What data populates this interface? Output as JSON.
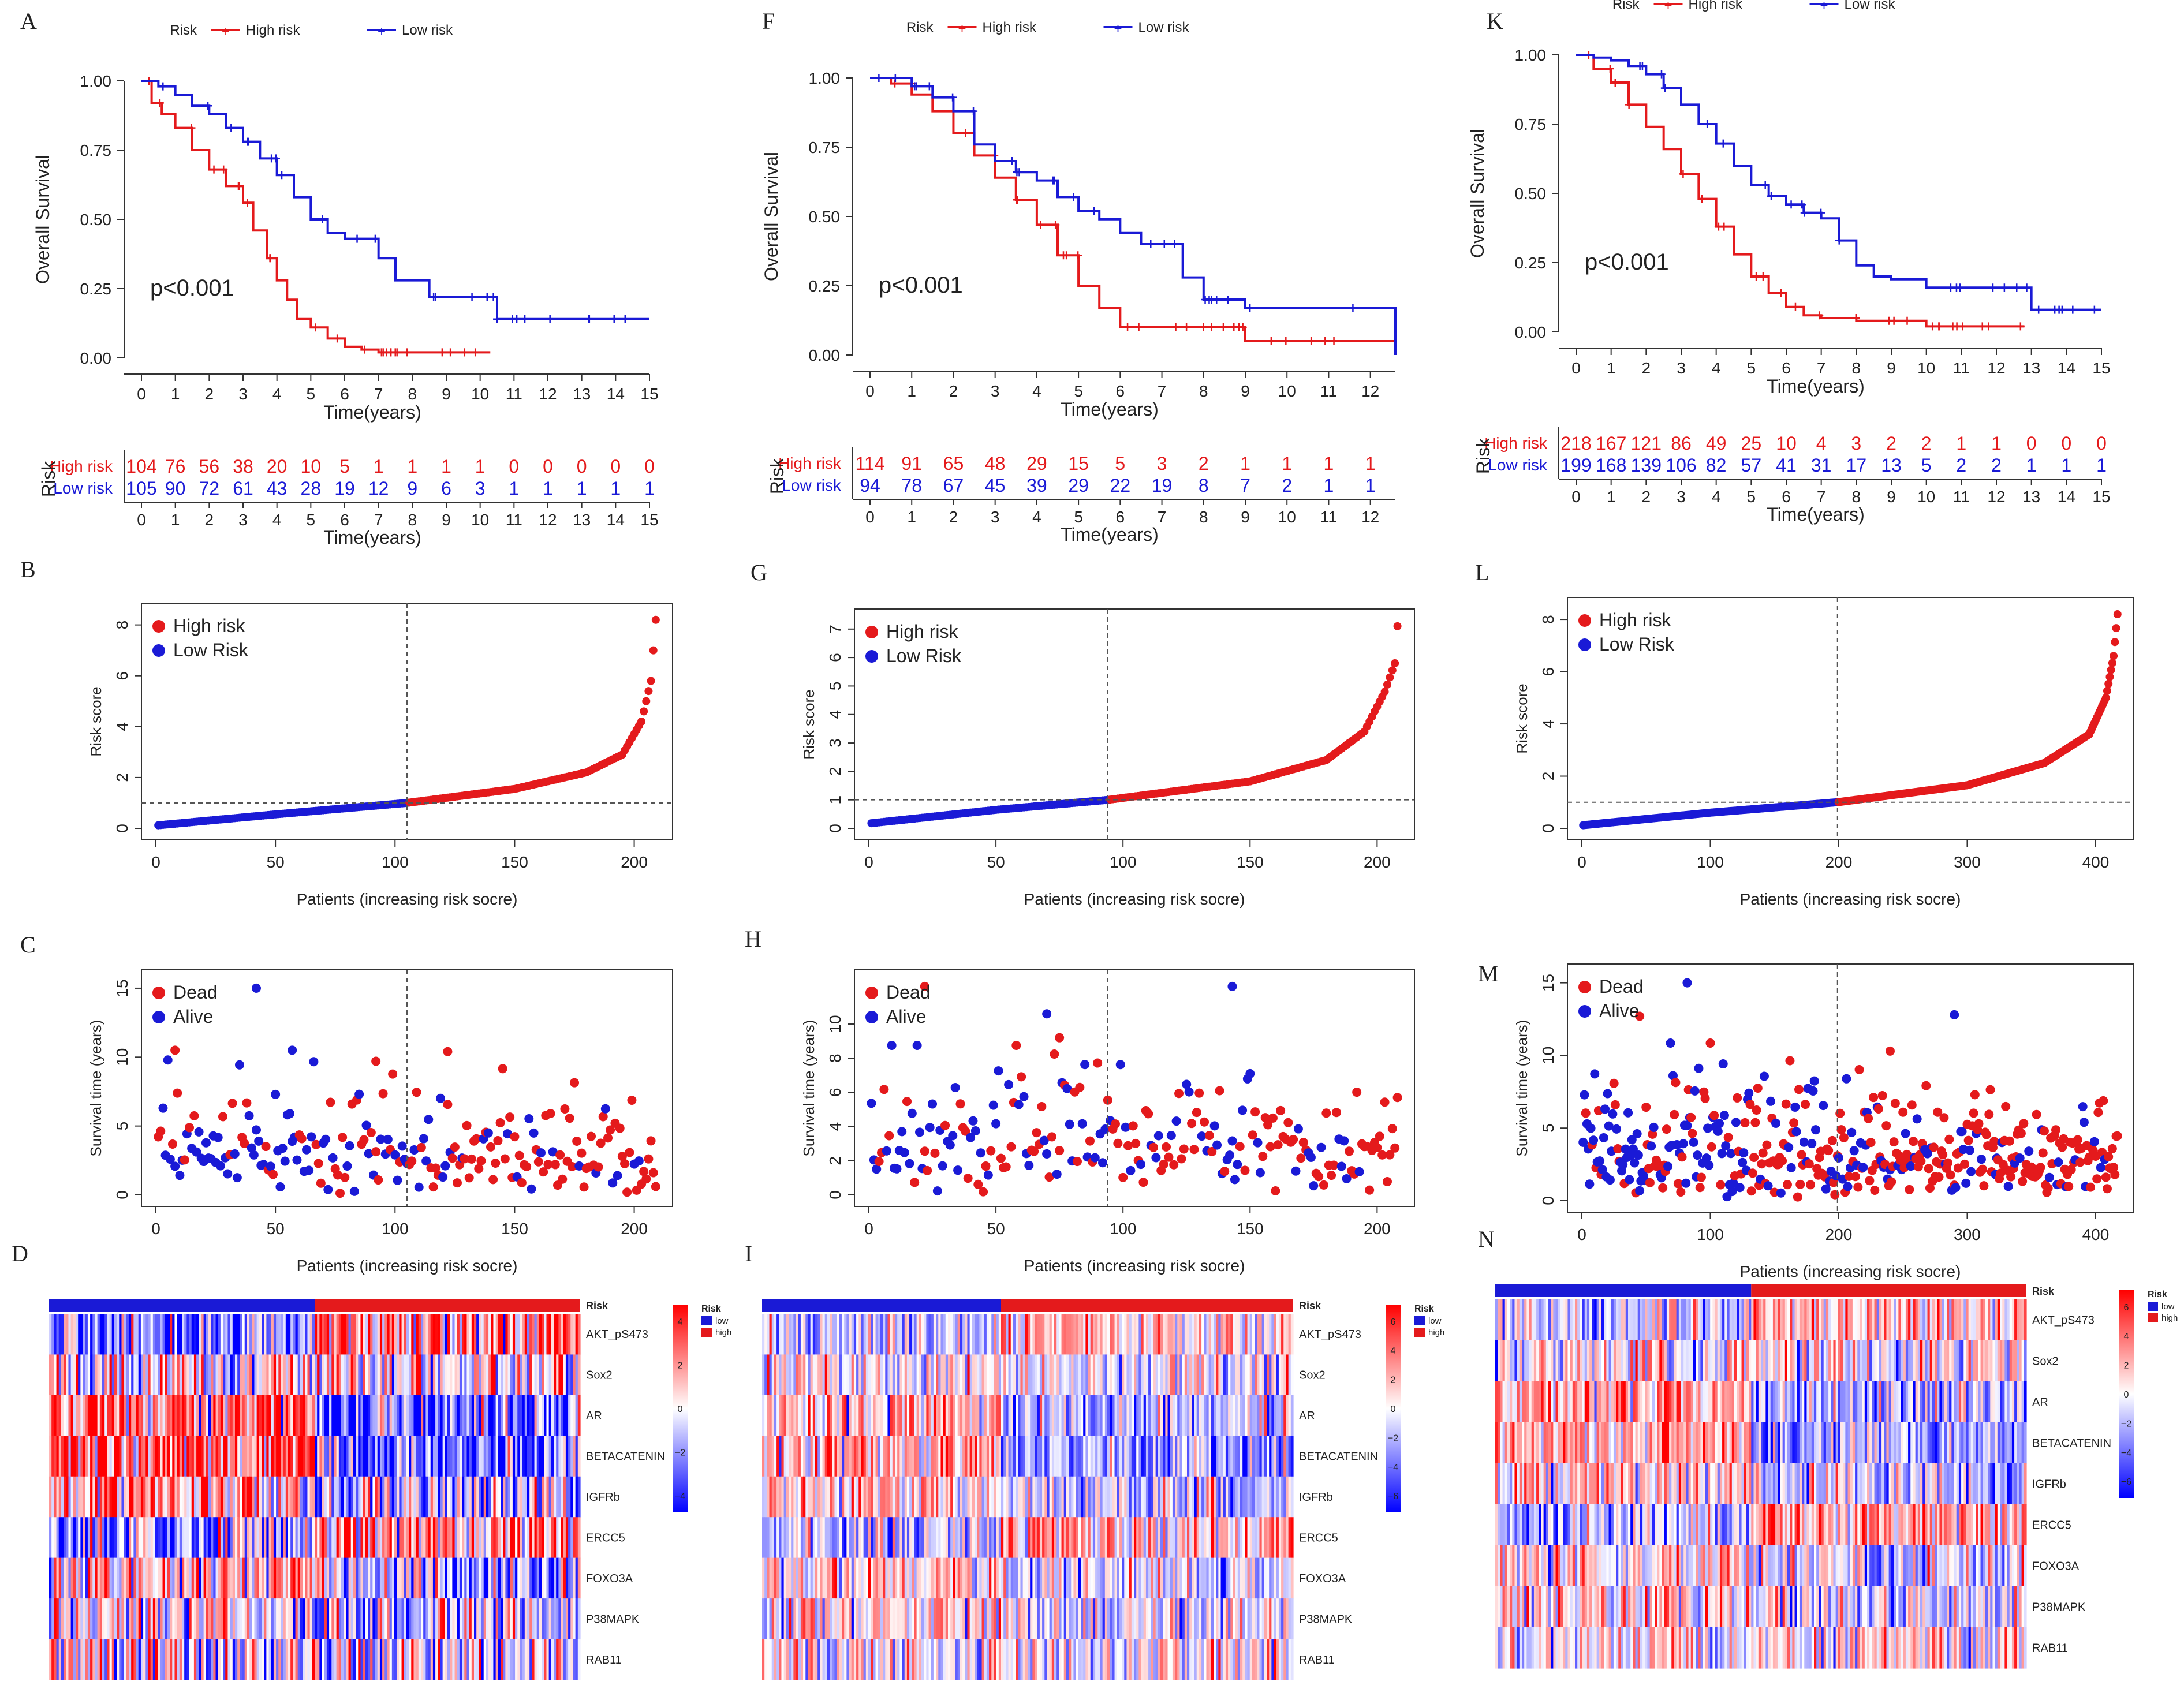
{
  "chart_data": [
    {
      "id": "A",
      "type": "line",
      "subtype": "kaplan-meier",
      "title": "",
      "xlabel": "Time(years)",
      "ylabel": "Overall Survival",
      "legend": {
        "title": "Risk",
        "entries": [
          "High risk",
          "Low risk"
        ],
        "placement": "top"
      },
      "xticks": [
        "0",
        "1",
        "2",
        "3",
        "4",
        "5",
        "6",
        "7",
        "8",
        "9",
        "10",
        "11",
        "12",
        "13",
        "14",
        "15"
      ],
      "yticks": [
        "0.00",
        "0.25",
        "0.50",
        "0.75",
        "1.00"
      ],
      "xlim": [
        0,
        15
      ],
      "ylim": [
        0,
        1
      ],
      "pvalue": "p<0.001",
      "series": [
        {
          "name": "High risk",
          "x": [
            0,
            0.3,
            0.6,
            1,
            1.5,
            2,
            2.5,
            3,
            3.3,
            3.7,
            4,
            4.3,
            4.6,
            5,
            5.5,
            6,
            6.5,
            7,
            8,
            9,
            10,
            10.3
          ],
          "y": [
            1,
            0.92,
            0.88,
            0.83,
            0.75,
            0.68,
            0.62,
            0.56,
            0.46,
            0.36,
            0.28,
            0.21,
            0.14,
            0.11,
            0.07,
            0.04,
            0.03,
            0.02,
            0.02,
            0.02,
            0.02,
            0.02
          ]
        },
        {
          "name": "Low risk",
          "x": [
            0,
            0.5,
            1,
            1.5,
            2,
            2.5,
            3,
            3.5,
            4,
            4.5,
            5,
            5.5,
            6,
            6.8,
            7,
            7.5,
            8,
            8.5,
            9,
            10,
            10.5,
            11,
            13,
            15
          ],
          "y": [
            1,
            0.98,
            0.95,
            0.91,
            0.88,
            0.83,
            0.78,
            0.72,
            0.66,
            0.58,
            0.5,
            0.45,
            0.43,
            0.43,
            0.36,
            0.28,
            0.28,
            0.22,
            0.22,
            0.22,
            0.14,
            0.14,
            0.14,
            0.14
          ]
        }
      ],
      "risk_table": {
        "title": "Risk",
        "xlabel": "Time(years)",
        "xticks": [
          "0",
          "1",
          "2",
          "3",
          "4",
          "5",
          "6",
          "7",
          "8",
          "9",
          "10",
          "11",
          "12",
          "13",
          "14",
          "15"
        ],
        "rows": [
          {
            "label": "High risk",
            "values": [
              "104",
              "76",
              "56",
              "38",
              "20",
              "10",
              "5",
              "1",
              "1",
              "1",
              "1",
              "0",
              "0",
              "0",
              "0",
              "0"
            ]
          },
          {
            "label": "Low risk",
            "values": [
              "105",
              "90",
              "72",
              "61",
              "43",
              "28",
              "19",
              "12",
              "9",
              "6",
              "3",
              "1",
              "1",
              "1",
              "1",
              "1"
            ]
          }
        ]
      }
    },
    {
      "id": "F",
      "type": "line",
      "subtype": "kaplan-meier",
      "title": "",
      "xlabel": "Time(years)",
      "ylabel": "Overall Survival",
      "legend": {
        "title": "Risk",
        "entries": [
          "High risk",
          "Low risk"
        ],
        "placement": "top"
      },
      "xticks": [
        "0",
        "1",
        "2",
        "3",
        "4",
        "5",
        "6",
        "7",
        "8",
        "9",
        "10",
        "11",
        "12"
      ],
      "yticks": [
        "0.00",
        "0.25",
        "0.50",
        "0.75",
        "1.00"
      ],
      "xlim": [
        0,
        12.6
      ],
      "ylim": [
        0,
        1
      ],
      "pvalue": "p<0.001",
      "series": [
        {
          "name": "High risk",
          "x": [
            0,
            0.5,
            1,
            1.5,
            2,
            2.5,
            3,
            3.5,
            4,
            4.5,
            5,
            5.5,
            6,
            7,
            8,
            8.9,
            9,
            10,
            11,
            12,
            12.6
          ],
          "y": [
            1,
            0.98,
            0.94,
            0.88,
            0.8,
            0.72,
            0.64,
            0.56,
            0.47,
            0.36,
            0.25,
            0.17,
            0.1,
            0.1,
            0.1,
            0.1,
            0.05,
            0.05,
            0.05,
            0.05,
            0.05
          ]
        },
        {
          "name": "Low risk",
          "x": [
            0,
            0.5,
            1,
            1.5,
            2,
            2.5,
            3,
            3.5,
            4,
            4.5,
            5,
            5.5,
            6,
            6.5,
            7,
            7.5,
            8,
            9,
            10,
            11,
            12,
            12.5,
            12.6
          ],
          "y": [
            1,
            1,
            0.97,
            0.93,
            0.88,
            0.76,
            0.7,
            0.66,
            0.63,
            0.57,
            0.52,
            0.49,
            0.44,
            0.4,
            0.4,
            0.28,
            0.2,
            0.17,
            0.17,
            0.17,
            0.17,
            0.17,
            0
          ]
        }
      ],
      "risk_table": {
        "title": "Risk",
        "xlabel": "Time(years)",
        "xticks": [
          "0",
          "1",
          "2",
          "3",
          "4",
          "5",
          "6",
          "7",
          "8",
          "9",
          "10",
          "11",
          "12"
        ],
        "rows": [
          {
            "label": "High risk",
            "values": [
              "114",
              "91",
              "65",
              "48",
              "29",
              "15",
              "5",
              "3",
              "2",
              "1",
              "1",
              "1",
              "1"
            ]
          },
          {
            "label": "Low risk",
            "values": [
              "94",
              "78",
              "67",
              "45",
              "39",
              "29",
              "22",
              "19",
              "8",
              "7",
              "2",
              "1",
              "1"
            ]
          }
        ]
      }
    },
    {
      "id": "K",
      "type": "line",
      "subtype": "kaplan-meier",
      "title": "",
      "xlabel": "Time(years)",
      "ylabel": "Overall Survival",
      "legend": {
        "title": "Risk",
        "entries": [
          "High risk",
          "Low risk"
        ],
        "placement": "top"
      },
      "xticks": [
        "0",
        "1",
        "2",
        "3",
        "4",
        "5",
        "6",
        "7",
        "8",
        "9",
        "10",
        "11",
        "12",
        "13",
        "14",
        "15"
      ],
      "yticks": [
        "0.00",
        "0.25",
        "0.50",
        "0.75",
        "1.00"
      ],
      "xlim": [
        0,
        15
      ],
      "ylim": [
        0,
        1
      ],
      "pvalue": "p<0.001",
      "series": [
        {
          "name": "High risk",
          "x": [
            0,
            0.5,
            1,
            1.5,
            2,
            2.5,
            3,
            3.5,
            4,
            4.5,
            5,
            5.5,
            6,
            6.5,
            7,
            8,
            9,
            10,
            11,
            12,
            12.8
          ],
          "y": [
            1,
            0.95,
            0.9,
            0.82,
            0.74,
            0.66,
            0.57,
            0.48,
            0.38,
            0.28,
            0.2,
            0.14,
            0.09,
            0.06,
            0.05,
            0.04,
            0.04,
            0.02,
            0.02,
            0.02,
            0.02
          ]
        },
        {
          "name": "Low risk",
          "x": [
            0,
            0.5,
            1,
            1.5,
            2,
            2.5,
            3,
            3.5,
            4,
            4.5,
            5,
            5.5,
            6,
            6.5,
            7,
            7.5,
            8,
            8.5,
            9,
            10,
            11,
            12,
            13,
            14,
            15
          ],
          "y": [
            1,
            0.99,
            0.98,
            0.96,
            0.93,
            0.88,
            0.82,
            0.75,
            0.68,
            0.6,
            0.53,
            0.49,
            0.46,
            0.43,
            0.41,
            0.33,
            0.24,
            0.2,
            0.19,
            0.16,
            0.16,
            0.16,
            0.08,
            0.08,
            0.08
          ]
        }
      ],
      "risk_table": {
        "title": "Risk",
        "xlabel": "Time(years)",
        "xticks": [
          "0",
          "1",
          "2",
          "3",
          "4",
          "5",
          "6",
          "7",
          "8",
          "9",
          "10",
          "11",
          "12",
          "13",
          "14",
          "15"
        ],
        "rows": [
          {
            "label": "High risk",
            "values": [
              "218",
              "167",
              "121",
              "86",
              "49",
              "25",
              "10",
              "4",
              "3",
              "2",
              "2",
              "1",
              "1",
              "0",
              "0",
              "0"
            ]
          },
          {
            "label": "Low risk",
            "values": [
              "199",
              "168",
              "139",
              "106",
              "82",
              "57",
              "41",
              "31",
              "17",
              "13",
              "5",
              "2",
              "2",
              "1",
              "1",
              "1"
            ]
          }
        ]
      }
    },
    {
      "id": "B",
      "type": "scatter",
      "subtype": "risk-score",
      "xlabel": "Patients (increasing risk socre)",
      "ylabel": "Risk score",
      "legend": {
        "entries": [
          "High risk",
          "Low Risk"
        ],
        "placement": "top-left"
      },
      "n": 209,
      "cutoff_index": 105,
      "cutoff_value": 1.0,
      "xticks": [
        "0",
        "50",
        "100",
        "150",
        "200"
      ],
      "yticks": [
        "0",
        "2",
        "4",
        "6",
        "8"
      ],
      "xlim": [
        0,
        210
      ],
      "ylim": [
        0,
        8.4
      ],
      "curve": {
        "x": [
          1,
          50,
          105,
          150,
          180,
          195,
          203,
          207,
          209
        ],
        "y": [
          0.12,
          0.55,
          1.0,
          1.55,
          2.2,
          2.9,
          4.2,
          5.8,
          8.2
        ]
      }
    },
    {
      "id": "G",
      "type": "scatter",
      "subtype": "risk-score",
      "xlabel": "Patients (increasing risk socre)",
      "ylabel": "Risk score",
      "legend": {
        "entries": [
          "High risk",
          "Low Risk"
        ],
        "placement": "top-left"
      },
      "n": 208,
      "cutoff_index": 94,
      "cutoff_value": 1.0,
      "xticks": [
        "0",
        "50",
        "100",
        "150",
        "200"
      ],
      "yticks": [
        "0",
        "1",
        "2",
        "3",
        "4",
        "5",
        "6",
        "7"
      ],
      "xlim": [
        0,
        209
      ],
      "ylim": [
        0,
        7.3
      ],
      "curve": {
        "x": [
          1,
          50,
          94,
          150,
          180,
          195,
          203,
          207,
          208
        ],
        "y": [
          0.18,
          0.65,
          1.0,
          1.65,
          2.4,
          3.4,
          4.8,
          5.8,
          7.1
        ]
      }
    },
    {
      "id": "L",
      "type": "scatter",
      "subtype": "risk-score",
      "xlabel": "Patients (increasing risk socre)",
      "ylabel": "Risk score",
      "legend": {
        "entries": [
          "High risk",
          "Low Risk"
        ],
        "placement": "top-left"
      },
      "n": 417,
      "cutoff_index": 199,
      "cutoff_value": 1.0,
      "xticks": [
        "0",
        "100",
        "200",
        "300",
        "400"
      ],
      "yticks": [
        "0",
        "2",
        "4",
        "6",
        "8"
      ],
      "xlim": [
        0,
        418
      ],
      "ylim": [
        0,
        8.4
      ],
      "curve": {
        "x": [
          1,
          100,
          199,
          300,
          360,
          395,
          408,
          414,
          417
        ],
        "y": [
          0.12,
          0.6,
          1.0,
          1.65,
          2.5,
          3.6,
          5.0,
          6.6,
          8.2
        ]
      }
    },
    {
      "id": "C",
      "type": "scatter",
      "subtype": "survival-status",
      "xlabel": "Patients (increasing risk socre)",
      "ylabel": "Survival time (years)",
      "legend": {
        "entries": [
          "Dead",
          "Alive"
        ],
        "placement": "top-left"
      },
      "n": 209,
      "cutoff_index": 105,
      "xticks": [
        "0",
        "50",
        "100",
        "150",
        "200"
      ],
      "yticks": [
        "0",
        "5",
        "10",
        "15"
      ],
      "xlim": [
        0,
        210
      ],
      "ylim": [
        0,
        15.5
      ],
      "notable_points": [
        {
          "x": 42,
          "y": 15,
          "status": "Alive"
        },
        {
          "x": 57,
          "y": 10.5,
          "status": "Alive"
        },
        {
          "x": 8,
          "y": 10.5,
          "status": "Dead"
        },
        {
          "x": 92,
          "y": 9.7,
          "status": "Dead"
        },
        {
          "x": 122,
          "y": 10.4,
          "status": "Dead"
        }
      ]
    },
    {
      "id": "H",
      "type": "scatter",
      "subtype": "survival-status",
      "xlabel": "Patients (increasing risk socre)",
      "ylabel": "Survival time (years)",
      "legend": {
        "entries": [
          "Dead",
          "Alive"
        ],
        "placement": "top-left"
      },
      "n": 208,
      "cutoff_index": 94,
      "xticks": [
        "0",
        "50",
        "100",
        "150",
        "200"
      ],
      "yticks": [
        "0",
        "2",
        "4",
        "6",
        "8",
        "10"
      ],
      "xlim": [
        0,
        209
      ],
      "ylim": [
        0,
        12.5
      ],
      "notable_points": [
        {
          "x": 22,
          "y": 12.2,
          "status": "Dead"
        },
        {
          "x": 143,
          "y": 12.2,
          "status": "Alive"
        },
        {
          "x": 70,
          "y": 10.6,
          "status": "Alive"
        },
        {
          "x": 75,
          "y": 9.2,
          "status": "Dead"
        }
      ]
    },
    {
      "id": "M",
      "type": "scatter",
      "subtype": "survival-status",
      "xlabel": "Patients (increasing risk socre)",
      "ylabel": "Survival time (years)",
      "legend": {
        "entries": [
          "Dead",
          "Alive"
        ],
        "placement": "top-left"
      },
      "n": 417,
      "cutoff_index": 199,
      "xticks": [
        "0",
        "100",
        "200",
        "300",
        "400"
      ],
      "yticks": [
        "0",
        "5",
        "10",
        "15"
      ],
      "xlim": [
        0,
        418
      ],
      "ylim": [
        0,
        15.5
      ],
      "notable_points": [
        {
          "x": 82,
          "y": 15,
          "status": "Alive"
        },
        {
          "x": 290,
          "y": 12.8,
          "status": "Alive"
        },
        {
          "x": 45,
          "y": 12.7,
          "status": "Dead"
        },
        {
          "x": 240,
          "y": 10.3,
          "status": "Dead"
        }
      ]
    },
    {
      "id": "D",
      "type": "heatmap",
      "genes": [
        "AKT_pS473",
        "Sox2",
        "AR",
        "BETACATENIN",
        "IGFRb",
        "ERCC5",
        "FOXO3A",
        "P38MAPK",
        "RAB11"
      ],
      "annotation": {
        "title": "Risk",
        "levels": [
          "low",
          "high"
        ],
        "low_fraction": 0.5
      },
      "colorbar": {
        "ticks": [
          "4",
          "2",
          "0",
          "−2",
          "−4"
        ],
        "max": 5,
        "min": -5
      },
      "gene_trend": [
        0.8,
        0,
        -1.2,
        -1.4,
        -0.8,
        0.9,
        -0.5,
        -0.3,
        0
      ]
    },
    {
      "id": "I",
      "type": "heatmap",
      "genes": [
        "AKT_pS473",
        "Sox2",
        "AR",
        "BETACATENIN",
        "IGFRb",
        "ERCC5",
        "FOXO3A",
        "P38MAPK",
        "RAB11"
      ],
      "annotation": {
        "title": "Risk",
        "levels": [
          "low",
          "high"
        ],
        "low_fraction": 0.45
      },
      "colorbar": {
        "ticks": [
          "6",
          "4",
          "2",
          "0",
          "−2",
          "−4",
          "−6"
        ],
        "max": 7,
        "min": -7
      },
      "gene_trend": [
        0.6,
        0,
        -1,
        -1.2,
        -0.6,
        0.8,
        -0.4,
        -0.3,
        0
      ]
    },
    {
      "id": "N",
      "type": "heatmap",
      "genes": [
        "AKT_pS473",
        "Sox2",
        "AR",
        "BETACATENIN",
        "IGFRb",
        "ERCC5",
        "FOXO3A",
        "P38MAPK",
        "RAB11"
      ],
      "annotation": {
        "title": "Risk",
        "levels": [
          "low",
          "high"
        ],
        "low_fraction": 0.48
      },
      "colorbar": {
        "ticks": [
          "6",
          "4",
          "2",
          "0",
          "−2",
          "−4",
          "−6"
        ],
        "max": 7,
        "min": -7
      },
      "gene_trend": [
        0.7,
        0,
        -1.1,
        -1.2,
        -0.7,
        0.9,
        -0.5,
        -0.4,
        0
      ]
    }
  ],
  "colors": {
    "high": "#e41a1c",
    "low": "#1a1ad6",
    "heat_high": "#ff0000",
    "heat_mid": "#ffffff",
    "heat_low": "#0000ff"
  },
  "panel_letters": [
    "A",
    "B",
    "C",
    "D",
    "F",
    "G",
    "H",
    "I",
    "K",
    "L",
    "M",
    "N"
  ]
}
